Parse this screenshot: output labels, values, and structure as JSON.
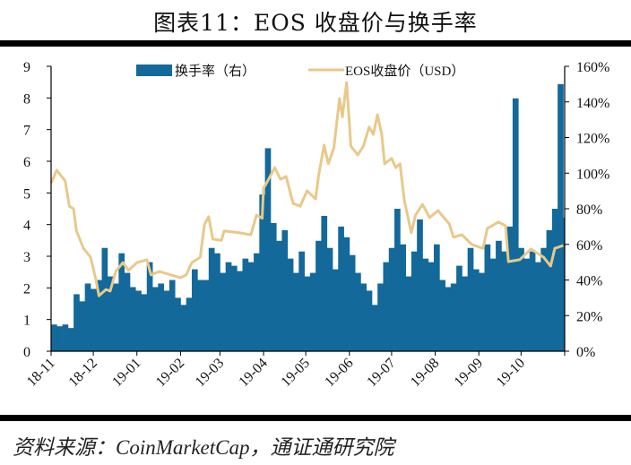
{
  "title": "图表11：EOS 收盘价与换手率",
  "source": "资料来源：CoinMarketCap，通证通研究院",
  "colors": {
    "turnover": "#13699a",
    "price": "#e8c98a"
  },
  "chart_data": {
    "type": "bar+line",
    "legend_position": "top",
    "grid": false,
    "x_tick_labels": [
      "18-11",
      "18-12",
      "19-01",
      "19-02",
      "19-03",
      "19-04",
      "19-05",
      "19-06",
      "19-07",
      "19-08",
      "19-09",
      "19-10"
    ],
    "x_tick_dates": [
      "2018-11-01",
      "2018-12-01",
      "2019-01-01",
      "2019-02-01",
      "2019-03-01",
      "2019-04-01",
      "2019-05-01",
      "2019-06-01",
      "2019-07-01",
      "2019-08-01",
      "2019-09-01",
      "2019-10-01",
      "2019-11-01"
    ],
    "y_left": {
      "ylim": [
        0,
        9
      ],
      "ticks": [
        "0",
        "1",
        "2",
        "3",
        "4",
        "5",
        "6",
        "7",
        "8",
        "9"
      ]
    },
    "y_right": {
      "ylim": [
        0,
        160
      ],
      "ticks": [
        "0%",
        "20%",
        "40%",
        "60%",
        "80%",
        "100%",
        "120%",
        "140%",
        "160%"
      ]
    },
    "series": [
      {
        "name": "换手率（右）",
        "type": "bar",
        "axis": "right",
        "unit": "%",
        "x": [
          "2018-11-01",
          "2018-11-05",
          "2018-11-09",
          "2018-11-13",
          "2018-11-17",
          "2018-11-21",
          "2018-11-25",
          "2018-11-29",
          "2018-12-03",
          "2018-12-07",
          "2018-12-11",
          "2018-12-15",
          "2018-12-19",
          "2018-12-23",
          "2018-12-27",
          "2018-12-31",
          "2019-01-04",
          "2019-01-08",
          "2019-01-12",
          "2019-01-16",
          "2019-01-20",
          "2019-01-24",
          "2019-01-28",
          "2019-02-01",
          "2019-02-05",
          "2019-02-09",
          "2019-02-13",
          "2019-02-17",
          "2019-02-21",
          "2019-02-25",
          "2019-03-01",
          "2019-03-05",
          "2019-03-09",
          "2019-03-13",
          "2019-03-17",
          "2019-03-21",
          "2019-03-25",
          "2019-03-29",
          "2019-04-02",
          "2019-04-06",
          "2019-04-10",
          "2019-04-14",
          "2019-04-18",
          "2019-04-22",
          "2019-04-26",
          "2019-04-30",
          "2019-05-04",
          "2019-05-08",
          "2019-05-12",
          "2019-05-16",
          "2019-05-20",
          "2019-05-24",
          "2019-05-28",
          "2019-06-01",
          "2019-06-05",
          "2019-06-09",
          "2019-06-13",
          "2019-06-17",
          "2019-06-21",
          "2019-06-25",
          "2019-06-29",
          "2019-07-03",
          "2019-07-07",
          "2019-07-11",
          "2019-07-15",
          "2019-07-19",
          "2019-07-23",
          "2019-07-27",
          "2019-07-31",
          "2019-08-04",
          "2019-08-08",
          "2019-08-12",
          "2019-08-16",
          "2019-08-20",
          "2019-08-24",
          "2019-08-28",
          "2019-09-01",
          "2019-09-05",
          "2019-09-09",
          "2019-09-13",
          "2019-09-17",
          "2019-09-21",
          "2019-09-25",
          "2019-09-29",
          "2019-10-03",
          "2019-10-07",
          "2019-10-11",
          "2019-10-15",
          "2019-10-19",
          "2019-10-23",
          "2019-10-27",
          "2019-10-31"
        ],
        "values": [
          15,
          14,
          15,
          13,
          32,
          28,
          38,
          35,
          40,
          58,
          42,
          38,
          55,
          44,
          36,
          34,
          32,
          50,
          36,
          38,
          34,
          40,
          30,
          26,
          30,
          46,
          40,
          40,
          58,
          55,
          44,
          50,
          48,
          45,
          52,
          50,
          55,
          88,
          114,
          72,
          62,
          68,
          52,
          44,
          56,
          42,
          44,
          62,
          76,
          58,
          46,
          70,
          64,
          54,
          44,
          38,
          34,
          26,
          38,
          50,
          58,
          80,
          60,
          42,
          56,
          74,
          52,
          50,
          60,
          40,
          36,
          38,
          48,
          42,
          58,
          46,
          44,
          60,
          52,
          62,
          56,
          70,
          142,
          58,
          52,
          56,
          50,
          58,
          68,
          80,
          150,
          75
        ]
      },
      {
        "name": "EOS收盘价（USD）",
        "type": "line",
        "axis": "left",
        "x": [
          "2018-11-01",
          "2018-11-05",
          "2018-11-11",
          "2018-11-14",
          "2018-11-17",
          "2018-11-19",
          "2018-11-24",
          "2018-11-29",
          "2018-12-03",
          "2018-12-05",
          "2018-12-10",
          "2018-12-13",
          "2018-12-17",
          "2018-12-22",
          "2018-12-26",
          "2019-01-01",
          "2019-01-08",
          "2019-01-11",
          "2019-01-17",
          "2019-01-25",
          "2019-02-01",
          "2019-02-05",
          "2019-02-09",
          "2019-02-15",
          "2019-02-18",
          "2019-02-21",
          "2019-02-24",
          "2019-03-02",
          "2019-03-04",
          "2019-03-15",
          "2019-03-23",
          "2019-03-27",
          "2019-03-31",
          "2019-04-01",
          "2019-04-03",
          "2019-04-09",
          "2019-04-13",
          "2019-04-17",
          "2019-04-22",
          "2019-04-27",
          "2019-05-02",
          "2019-05-08",
          "2019-05-10",
          "2019-05-14",
          "2019-05-17",
          "2019-05-21",
          "2019-05-25",
          "2019-05-27",
          "2019-05-30",
          "2019-06-01",
          "2019-06-02",
          "2019-06-07",
          "2019-06-11",
          "2019-06-15",
          "2019-06-18",
          "2019-06-21",
          "2019-06-24",
          "2019-06-26",
          "2019-07-01",
          "2019-07-04",
          "2019-07-07",
          "2019-07-10",
          "2019-07-15",
          "2019-07-18",
          "2019-07-23",
          "2019-07-28",
          "2019-08-03",
          "2019-08-11",
          "2019-08-14",
          "2019-08-20",
          "2019-08-27",
          "2019-09-04",
          "2019-09-07",
          "2019-09-15",
          "2019-09-20",
          "2019-09-22",
          "2019-09-30",
          "2019-10-08",
          "2019-10-17",
          "2019-10-22",
          "2019-10-25",
          "2019-10-31"
        ],
        "values": [
          5.3,
          5.72,
          5.38,
          4.58,
          4.5,
          3.8,
          3.25,
          2.97,
          2.24,
          1.75,
          1.95,
          1.9,
          2.52,
          2.8,
          2.55,
          2.8,
          2.89,
          2.41,
          2.52,
          2.41,
          2.32,
          2.41,
          2.8,
          2.97,
          4.0,
          4.25,
          3.54,
          3.5,
          3.8,
          3.74,
          3.68,
          4.3,
          4.2,
          5.15,
          5.3,
          5.8,
          5.43,
          5.52,
          4.67,
          4.58,
          5.07,
          4.81,
          5.52,
          6.51,
          5.92,
          6.42,
          7.98,
          7.4,
          8.49,
          7.22,
          6.48,
          6.2,
          6.48,
          7.08,
          6.85,
          7.47,
          6.85,
          5.92,
          6.09,
          5.8,
          5.92,
          4.78,
          3.74,
          4.3,
          4.64,
          4.22,
          4.44,
          4.02,
          3.6,
          3.68,
          3.37,
          3.25,
          3.88,
          4.08,
          3.96,
          2.83,
          2.89,
          3.23,
          2.97,
          2.69,
          3.25,
          3.34
        ]
      }
    ]
  }
}
